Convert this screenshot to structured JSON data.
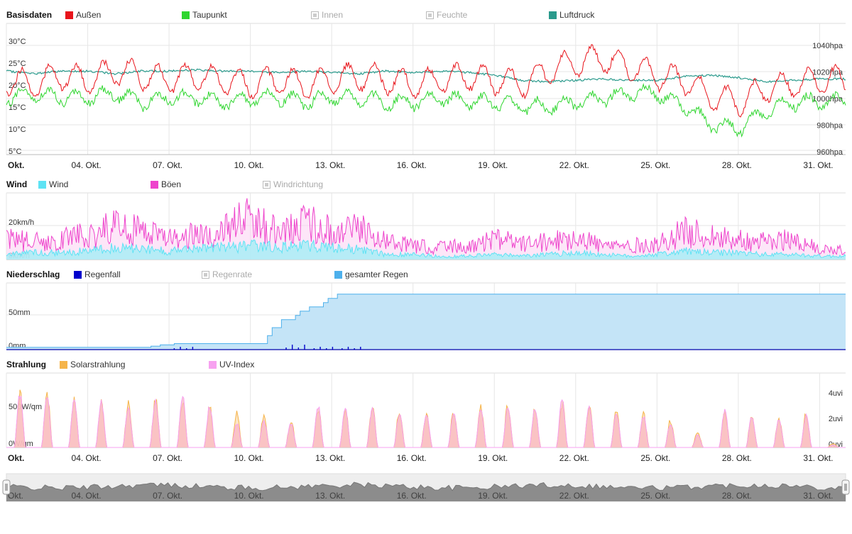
{
  "panels": {
    "basis": {
      "title": "Basisdaten",
      "legend": [
        {
          "label": "Außen",
          "color": "#e8141b",
          "active": true
        },
        {
          "label": "Taupunkt",
          "color": "#30d630",
          "active": true
        },
        {
          "label": "Innen",
          "color": "#aaaaaa",
          "active": false
        },
        {
          "label": "Feuchte",
          "color": "#aaaaaa",
          "active": false
        },
        {
          "label": "Luftdruck",
          "color": "#2a9a8c",
          "active": true
        }
      ],
      "y_left_ticks": [
        "30°C",
        "25°C",
        "20°C",
        "15°C",
        "10°C",
        "5°C"
      ],
      "y_right_ticks": [
        "1040hpa",
        "1020hpa",
        "1000hpa",
        "980hpa",
        "960hpa"
      ]
    },
    "wind": {
      "title": "Wind",
      "legend": [
        {
          "label": "Wind",
          "color": "#5ee3f4",
          "active": true
        },
        {
          "label": "Böen",
          "color": "#ee44cc",
          "active": true
        },
        {
          "label": "Windrichtung",
          "color": "#aaaaaa",
          "active": false
        }
      ],
      "y_left_ticks": [
        "20km/h",
        "0km/h"
      ]
    },
    "rain": {
      "title": "Niederschlag",
      "legend": [
        {
          "label": "Regenfall",
          "color": "#0000cc",
          "active": true
        },
        {
          "label": "Regenrate",
          "color": "#aaaaaa",
          "active": false
        },
        {
          "label": "gesamter Regen",
          "color": "#4db0ec",
          "active": true
        }
      ],
      "y_left_ticks": [
        "50mm",
        "0mm"
      ]
    },
    "solar": {
      "title": "Strahlung",
      "legend": [
        {
          "label": "Solarstrahlung",
          "color": "#f5b44a",
          "active": true
        },
        {
          "label": "UV-Index",
          "color": "#f7a1f0",
          "active": true
        }
      ],
      "y_left_ticks": [
        "500W/qm",
        "0W/qm"
      ],
      "y_right_ticks": [
        "4uvi",
        "2uvi",
        "0uvi"
      ]
    }
  },
  "x_ticks": [
    "Okt.",
    "04. Okt.",
    "07. Okt.",
    "10. Okt.",
    "13. Okt.",
    "16. Okt.",
    "19. Okt.",
    "22. Okt.",
    "25. Okt.",
    "28. Okt.",
    "31. Okt."
  ],
  "chart_data": [
    {
      "type": "line",
      "title": "Basisdaten",
      "x": [
        "01.10",
        "02.10",
        "03.10",
        "04.10",
        "05.10",
        "06.10",
        "07.10",
        "08.10",
        "09.10",
        "10.10",
        "11.10",
        "12.10",
        "13.10",
        "14.10",
        "15.10",
        "16.10",
        "17.10",
        "18.10",
        "19.10",
        "20.10",
        "21.10",
        "22.10",
        "23.10",
        "24.10",
        "25.10",
        "26.10",
        "27.10",
        "28.10",
        "29.10",
        "30.10",
        "31.10"
      ],
      "series": [
        {
          "name": "Außen",
          "unit": "°C",
          "values": [
            21,
            20,
            22,
            21,
            23,
            22,
            21,
            22,
            21,
            20,
            21,
            20,
            21,
            22,
            21,
            20,
            21,
            22,
            21,
            20,
            23,
            25,
            26,
            24,
            22,
            21,
            17,
            16,
            19,
            20,
            21
          ]
        },
        {
          "name": "Taupunkt",
          "unit": "°C",
          "values": [
            17,
            18,
            17,
            17,
            18,
            16,
            17,
            17,
            16,
            17,
            17,
            16,
            17,
            17,
            16,
            16,
            17,
            16,
            16,
            15,
            15,
            16,
            17,
            18,
            18,
            15,
            11,
            10,
            14,
            16,
            16
          ]
        },
        {
          "name": "Luftdruck",
          "unit": "hpa",
          "values": [
            1020,
            1018,
            1020,
            1020,
            1018,
            1020,
            1020,
            1021,
            1020,
            1020,
            1019,
            1020,
            1019,
            1018,
            1020,
            1019,
            1020,
            1019,
            1017,
            1013,
            1012,
            1013,
            1014,
            1013,
            1013,
            1016,
            1017,
            1015,
            1012,
            1013,
            1014
          ]
        }
      ],
      "ylim_left": [
        5,
        30
      ],
      "ylim_right": [
        960,
        1040
      ]
    },
    {
      "type": "area",
      "title": "Wind",
      "x": [
        "01.10",
        "02.10",
        "03.10",
        "04.10",
        "05.10",
        "06.10",
        "07.10",
        "08.10",
        "09.10",
        "10.10",
        "11.10",
        "12.10",
        "13.10",
        "14.10",
        "15.10",
        "16.10",
        "17.10",
        "18.10",
        "19.10",
        "20.10",
        "21.10",
        "22.10",
        "23.10",
        "24.10",
        "25.10",
        "26.10",
        "27.10",
        "28.10",
        "29.10",
        "30.10",
        "31.10"
      ],
      "series": [
        {
          "name": "Wind",
          "unit": "km/h",
          "values": [
            3,
            4,
            4,
            5,
            7,
            6,
            5,
            6,
            7,
            8,
            7,
            8,
            7,
            6,
            3,
            3,
            2,
            2,
            3,
            2,
            3,
            4,
            3,
            2,
            3,
            5,
            4,
            4,
            3,
            3,
            2
          ]
        },
        {
          "name": "Böen",
          "unit": "km/h",
          "values": [
            12,
            10,
            12,
            14,
            20,
            16,
            12,
            14,
            18,
            24,
            16,
            22,
            16,
            18,
            10,
            8,
            7,
            8,
            12,
            9,
            10,
            14,
            8,
            8,
            9,
            16,
            14,
            12,
            10,
            12,
            6
          ]
        }
      ],
      "ylim": [
        0,
        30
      ]
    },
    {
      "type": "area",
      "title": "Niederschlag",
      "x": [
        "01.10",
        "02.10",
        "03.10",
        "04.10",
        "05.10",
        "06.10",
        "07.10",
        "08.10",
        "09.10",
        "10.10",
        "11.10",
        "12.10",
        "13.10",
        "14.10",
        "15.10",
        "16.10",
        "17.10",
        "18.10",
        "19.10",
        "20.10",
        "21.10",
        "22.10",
        "23.10",
        "24.10",
        "25.10",
        "26.10",
        "27.10",
        "28.10",
        "29.10",
        "30.10",
        "31.10"
      ],
      "series": [
        {
          "name": "gesamter Regen",
          "unit": "mm",
          "values": [
            3,
            3,
            3,
            3,
            3,
            3,
            8,
            8,
            8,
            8,
            40,
            57,
            74,
            74,
            74,
            74,
            74,
            74,
            74,
            74,
            74,
            74,
            74,
            74,
            74,
            74,
            74,
            74,
            74,
            74,
            74
          ]
        },
        {
          "name": "Regenfall",
          "unit": "mm",
          "values": [
            0,
            0,
            0,
            0,
            0,
            0,
            1,
            0,
            0,
            0,
            2,
            1,
            1,
            0,
            0,
            0,
            0,
            0,
            0,
            0,
            0,
            0,
            0,
            0,
            0,
            0,
            0,
            0,
            0,
            0,
            0
          ]
        }
      ],
      "ylim": [
        0,
        100
      ]
    },
    {
      "type": "area",
      "title": "Strahlung",
      "x": [
        "01.10",
        "02.10",
        "03.10",
        "04.10",
        "05.10",
        "06.10",
        "07.10",
        "08.10",
        "09.10",
        "10.10",
        "11.10",
        "12.10",
        "13.10",
        "14.10",
        "15.10",
        "16.10",
        "17.10",
        "18.10",
        "19.10",
        "20.10",
        "21.10",
        "22.10",
        "23.10",
        "24.10",
        "25.10",
        "26.10",
        "27.10",
        "28.10",
        "29.10",
        "30.10",
        "31.10"
      ],
      "series": [
        {
          "name": "Solarstrahlung",
          "unit": "W/qm",
          "values": [
            800,
            780,
            720,
            700,
            650,
            700,
            720,
            600,
            500,
            450,
            400,
            600,
            580,
            600,
            550,
            500,
            540,
            600,
            640,
            600,
            680,
            620,
            560,
            500,
            400,
            230,
            550,
            490,
            470,
            500,
            60
          ]
        },
        {
          "name": "UV-Index",
          "unit": "uvi",
          "values": [
            4.4,
            4.2,
            4.0,
            3.8,
            3.2,
            3.8,
            4.2,
            3.4,
            2.0,
            2.2,
            2.0,
            3.4,
            3.2,
            3.3,
            2.8,
            2.6,
            2.9,
            3.3,
            3.5,
            3.3,
            3.9,
            3.4,
            3.0,
            2.6,
            2.0,
            1.0,
            3.0,
            2.6,
            2.4,
            2.6,
            0.2
          ]
        }
      ],
      "ylim_left": [
        0,
        1100
      ],
      "ylim_right": [
        0,
        6
      ]
    }
  ],
  "navigator": {
    "x_ticks": [
      "Okt.",
      "04. Okt.",
      "07. Okt.",
      "10. Okt.",
      "13. Okt.",
      "16. Okt.",
      "19. Okt.",
      "22. Okt.",
      "25. Okt.",
      "28. Okt.",
      "31. Okt."
    ]
  }
}
